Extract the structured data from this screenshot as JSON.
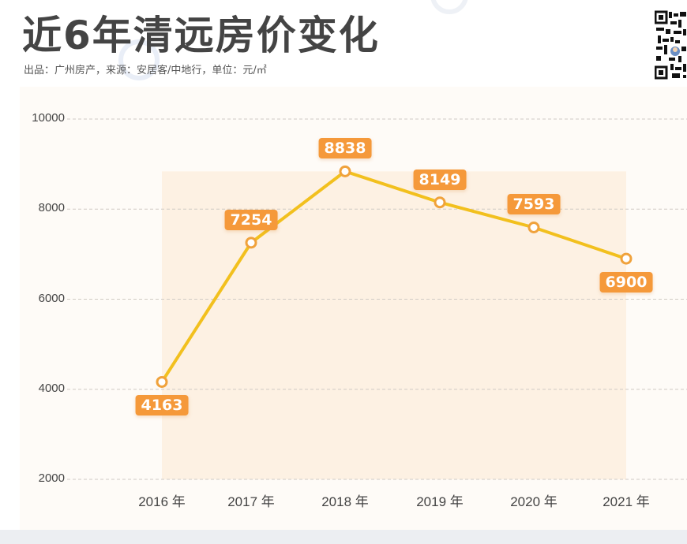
{
  "header": {
    "title": "近6年清远房价变化",
    "subtitle": "出品：广州房产，来源：安居客/中地行，单位：元/㎡"
  },
  "icons": {
    "qr_code": "qr-code-icon"
  },
  "colors": {
    "line": "#f2c01e",
    "label_bg": "#f5993a",
    "marker_stroke": "#f0a23c",
    "area_fill": "#fdf1e3",
    "panel_bg": "#fefbf7",
    "title": "#444444"
  },
  "chart_data": {
    "type": "line",
    "title": "近6年清远房价变化",
    "subtitle": "出品：广州房产，来源：安居客/中地行，单位：元/㎡",
    "categories": [
      "2016 年",
      "2017 年",
      "2018 年",
      "2019 年",
      "2020 年",
      "2021 年"
    ],
    "series": [
      {
        "name": "清远房价",
        "values": [
          4163,
          7254,
          8838,
          8149,
          7593,
          6900
        ]
      }
    ],
    "xlabel": "",
    "ylabel": "",
    "yticks": [
      "10000",
      "8000",
      "6000",
      "4000",
      "2000"
    ],
    "ylim": [
      2000,
      10000
    ],
    "grid": true,
    "unit": "元/㎡",
    "data_labels": [
      "4163",
      "7254",
      "8838",
      "8149",
      "7593",
      "6900"
    ]
  }
}
